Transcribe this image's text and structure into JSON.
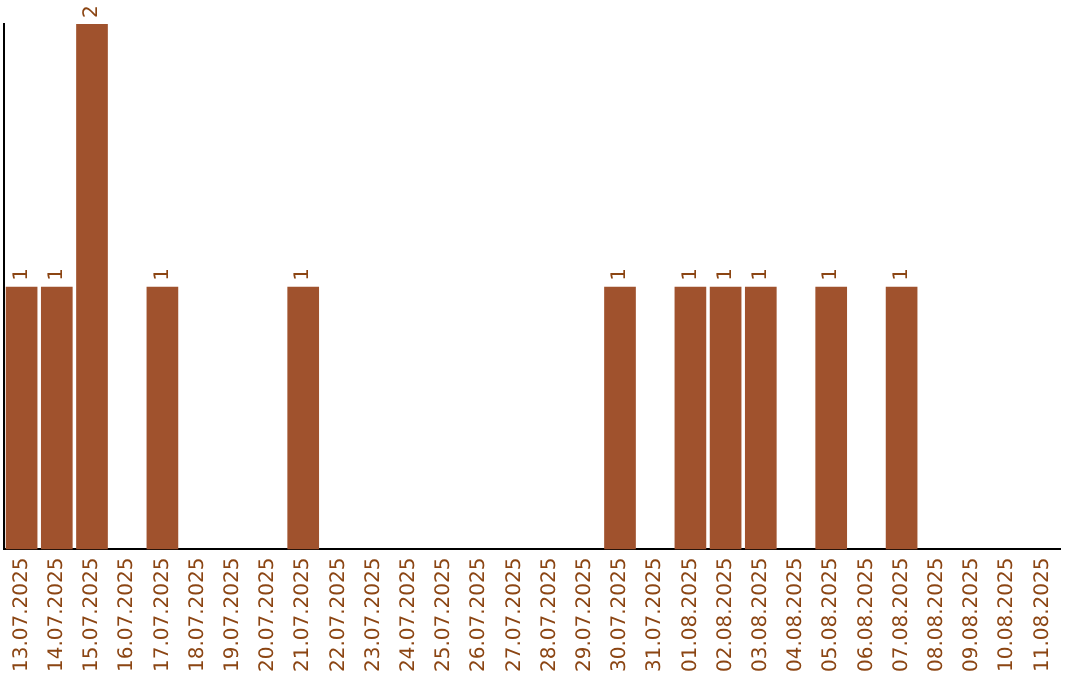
{
  "chart_data": {
    "type": "bar",
    "categories": [
      "13.07.2025",
      "14.07.2025",
      "15.07.2025",
      "16.07.2025",
      "17.07.2025",
      "18.07.2025",
      "19.07.2025",
      "20.07.2025",
      "21.07.2025",
      "22.07.2025",
      "23.07.2025",
      "24.07.2025",
      "25.07.2025",
      "26.07.2025",
      "27.07.2025",
      "28.07.2025",
      "29.07.2025",
      "30.07.2025",
      "31.07.2025",
      "01.08.2025",
      "02.08.2025",
      "03.08.2025",
      "04.08.2025",
      "05.08.2025",
      "06.08.2025",
      "07.08.2025",
      "08.08.2025",
      "09.08.2025",
      "10.08.2025",
      "11.08.2025"
    ],
    "values": [
      1,
      1,
      2,
      0,
      1,
      0,
      0,
      0,
      1,
      0,
      0,
      0,
      0,
      0,
      0,
      0,
      0,
      1,
      0,
      1,
      1,
      1,
      0,
      1,
      0,
      1,
      0,
      0,
      0,
      0
    ],
    "value_labels": [
      "1",
      "1",
      "2",
      null,
      "1",
      null,
      null,
      null,
      "1",
      null,
      null,
      null,
      null,
      null,
      null,
      null,
      null,
      "1",
      null,
      "1",
      "1",
      "1",
      null,
      "1",
      null,
      "1",
      null,
      null,
      null,
      null
    ],
    "color": "#a0522d",
    "grid": false,
    "legend": false,
    "tick_labels": "x"
  }
}
